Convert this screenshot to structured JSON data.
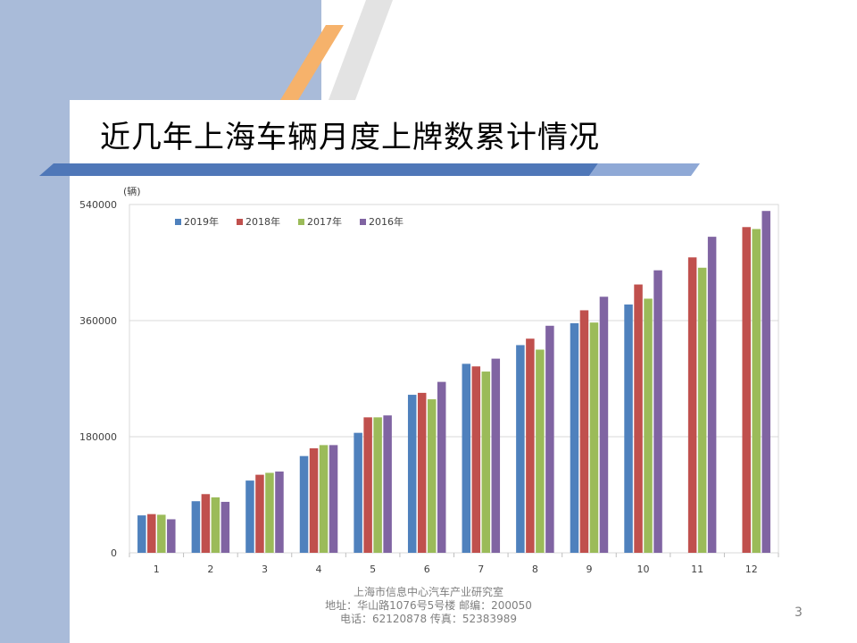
{
  "slide": {
    "title": "近几年上海车辆月度上牌数累计情况",
    "page_number": "3"
  },
  "footer": {
    "line1": "上海市信息中心汽车产业研究室",
    "line2": "地址：华山路1076号5号楼    邮编：200050",
    "line3": "电话：62120878  传真：52383989"
  },
  "colors": {
    "sidebar": "#a9bbd9",
    "stripe_dark": "#4f77b8",
    "stripe_light": "#8fa9d6",
    "accent_orange": "#f6b26b",
    "accent_grey": "#e3e3e3"
  },
  "chart_data": {
    "type": "bar",
    "ylabel": "(辆)",
    "xlabel": "",
    "ylim": [
      0,
      540000
    ],
    "yticks": [
      "0",
      "180000",
      "360000",
      "540000"
    ],
    "grid": true,
    "legend_position": "top-left",
    "categories": [
      "1",
      "2",
      "3",
      "4",
      "5",
      "6",
      "7",
      "8",
      "9",
      "10",
      "11",
      "12"
    ],
    "series": [
      {
        "name": "2019年",
        "color": "#4f81bd",
        "values": [
          58000,
          80000,
          112000,
          150000,
          186000,
          245000,
          293000,
          322000,
          356000,
          385000,
          null,
          null
        ]
      },
      {
        "name": "2018年",
        "color": "#c0504d",
        "values": [
          60000,
          91000,
          121000,
          162000,
          210000,
          248000,
          289000,
          332000,
          376000,
          416000,
          458000,
          505000
        ]
      },
      {
        "name": "2017年",
        "color": "#9bbb59",
        "values": [
          59000,
          86000,
          124000,
          167000,
          210000,
          238000,
          281000,
          315000,
          357000,
          394000,
          442000,
          502000
        ]
      },
      {
        "name": "2016年",
        "color": "#8064a2",
        "values": [
          52000,
          79000,
          126000,
          167000,
          213000,
          265000,
          301000,
          352000,
          397000,
          438000,
          490000,
          530000
        ]
      }
    ]
  }
}
